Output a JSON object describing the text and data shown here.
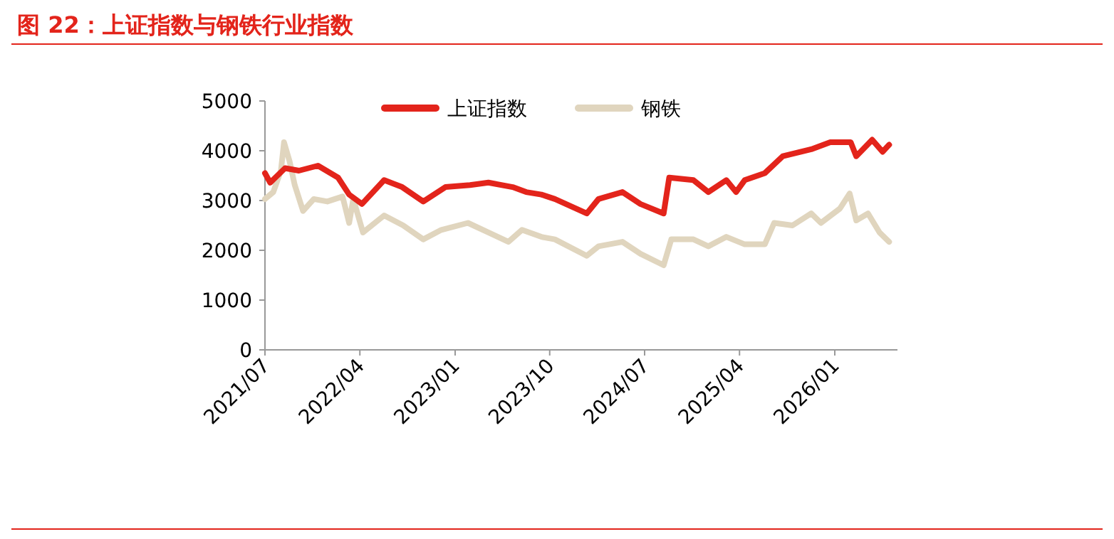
{
  "chart_data": {
    "type": "line",
    "title": "图 22：上证指数与钢铁行业指数",
    "xlim": [
      "2021-07",
      "2026-07"
    ],
    "xticks": [
      {
        "value": "2021-07",
        "label": "2021/07"
      },
      {
        "value": "2022-04",
        "label": "2022/04"
      },
      {
        "value": "2023-01",
        "label": "2023/01"
      },
      {
        "value": "2023-10",
        "label": "2023/10"
      },
      {
        "value": "2024-07",
        "label": "2024/07"
      },
      {
        "value": "2025-04",
        "label": "2025/04"
      },
      {
        "value": "2026-01",
        "label": "2026/01"
      }
    ],
    "ylim": [
      0,
      5000
    ],
    "yticks": [
      0,
      1000,
      2000,
      3000,
      4000,
      5000
    ],
    "grid": false,
    "legend": "top",
    "marker": "none",
    "line_style": "solid",
    "series": [
      {
        "name": "上证指数",
        "color": "#e3241b",
        "x": [
          "2021-07-01",
          "2021-07-16",
          "2021-08-28",
          "2021-10-07",
          "2021-12-01",
          "2022-01-28",
          "2022-03-01",
          "2022-04-07",
          "2022-06-10",
          "2022-08-01",
          "2022-10-01",
          "2022-12-04",
          "2023-02-13",
          "2023-04-07",
          "2023-06-16",
          "2023-07-25",
          "2023-09-07",
          "2023-10-16",
          "2024-01-16",
          "2024-02-19",
          "2024-04-28",
          "2024-06-19",
          "2024-08-25",
          "2024-09-10",
          "2024-11-19",
          "2025-01-01",
          "2025-02-22",
          "2025-03-22",
          "2025-04-16",
          "2025-06-13",
          "2025-08-04",
          "2025-10-25",
          "2025-12-19",
          "2026-02-16",
          "2026-03-04",
          "2026-04-19",
          "2026-05-19",
          "2026-06-07"
        ],
        "values": [
          3550,
          3360,
          3650,
          3600,
          3700,
          3460,
          3120,
          2930,
          3410,
          3270,
          2980,
          3270,
          3310,
          3360,
          3270,
          3170,
          3120,
          3030,
          2740,
          3030,
          3170,
          2930,
          2740,
          3460,
          3410,
          3170,
          3410,
          3170,
          3410,
          3550,
          3890,
          4030,
          4170,
          4170,
          3890,
          4220,
          3980,
          4120
        ]
      },
      {
        "name": "钢铁",
        "color": "#e0d5be",
        "x": [
          "2021-07-01",
          "2021-07-25",
          "2021-08-16",
          "2021-08-25",
          "2021-09-10",
          "2021-09-25",
          "2021-10-19",
          "2021-11-19",
          "2021-12-28",
          "2022-02-10",
          "2022-03-01",
          "2022-03-13",
          "2022-04-10",
          "2022-06-10",
          "2022-08-04",
          "2022-10-01",
          "2022-11-22",
          "2023-02-07",
          "2023-04-07",
          "2023-06-04",
          "2023-07-13",
          "2023-09-07",
          "2023-10-16",
          "2024-01-16",
          "2024-02-19",
          "2024-04-28",
          "2024-06-19",
          "2024-08-25",
          "2024-09-16",
          "2024-11-19",
          "2025-01-01",
          "2025-02-22",
          "2025-04-16",
          "2025-06-13",
          "2025-07-10",
          "2025-09-01",
          "2025-10-25",
          "2025-11-22",
          "2026-01-16",
          "2026-02-13",
          "2026-03-04",
          "2026-04-07",
          "2026-05-10",
          "2026-06-07"
        ],
        "values": [
          3030,
          3170,
          3600,
          4170,
          3790,
          3310,
          2790,
          3030,
          2980,
          3080,
          2550,
          3030,
          2360,
          2700,
          2500,
          2220,
          2410,
          2550,
          2360,
          2170,
          2410,
          2270,
          2220,
          1890,
          2080,
          2170,
          1930,
          1700,
          2220,
          2220,
          2080,
          2270,
          2120,
          2120,
          2550,
          2500,
          2740,
          2550,
          2840,
          3140,
          2600,
          2740,
          2360,
          2170
        ]
      }
    ]
  }
}
